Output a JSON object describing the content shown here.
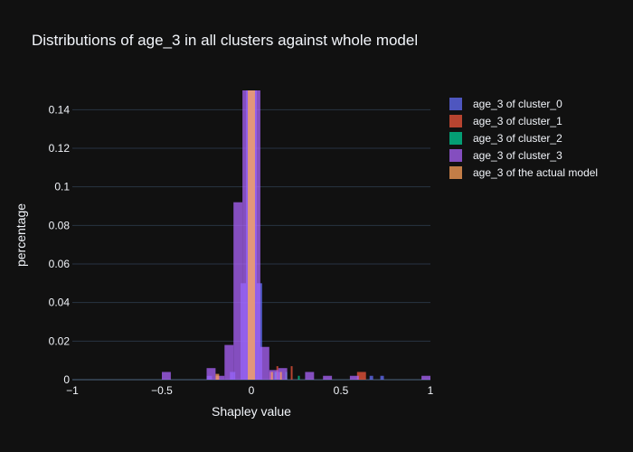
{
  "chart_data": {
    "type": "bar",
    "title": "Distributions of age_3 in all clusters against whole model",
    "xlabel": "Shapley value",
    "ylabel": "percentage",
    "xlim": [
      -1,
      1
    ],
    "ylim": [
      0,
      0.15
    ],
    "x_ticks": [
      -1,
      -0.5,
      0,
      0.5,
      1
    ],
    "x_tick_labels": [
      "−1",
      "−0.5",
      "0",
      "0.5",
      "1"
    ],
    "y_ticks": [
      0,
      0.02,
      0.04,
      0.06,
      0.08,
      0.1,
      0.12,
      0.14
    ],
    "y_tick_labels": [
      "0",
      "0.02",
      "0.04",
      "0.06",
      "0.08",
      "0.1",
      "0.12",
      "0.14"
    ],
    "grid": true,
    "legend_position": "right",
    "background": "#111111",
    "series": [
      {
        "name": "age_3 of cluster_0",
        "color": "#636efa",
        "bins": [
          {
            "x0": -0.25,
            "x1": -0.22,
            "y": 0.002
          },
          {
            "x0": -0.12,
            "x1": -0.09,
            "y": 0.004
          },
          {
            "x0": -0.06,
            "x1": -0.03,
            "y": 0.05
          },
          {
            "x0": -0.03,
            "x1": 0.0,
            "y": 0.15
          },
          {
            "x0": 0.0,
            "x1": 0.03,
            "y": 0.15
          },
          {
            "x0": 0.03,
            "x1": 0.06,
            "y": 0.05
          },
          {
            "x0": 0.13,
            "x1": 0.16,
            "y": 0.004
          },
          {
            "x0": 0.66,
            "x1": 0.68,
            "y": 0.002
          },
          {
            "x0": 0.72,
            "x1": 0.74,
            "y": 0.002
          }
        ]
      },
      {
        "name": "age_3 of cluster_1",
        "color": "#ef553b",
        "bins": [
          {
            "x0": -0.02,
            "x1": 0.0,
            "y": 0.15
          },
          {
            "x0": 0.0,
            "x1": 0.02,
            "y": 0.15
          },
          {
            "x0": 0.1,
            "x1": 0.11,
            "y": 0.004
          },
          {
            "x0": 0.14,
            "x1": 0.15,
            "y": 0.007
          },
          {
            "x0": 0.22,
            "x1": 0.23,
            "y": 0.007
          },
          {
            "x0": 0.59,
            "x1": 0.64,
            "y": 0.004
          }
        ]
      },
      {
        "name": "age_3 of cluster_2",
        "color": "#00cc96",
        "bins": [
          {
            "x0": -0.02,
            "x1": 0.02,
            "y": 0.15
          },
          {
            "x0": 0.13,
            "x1": 0.14,
            "y": 0.004
          },
          {
            "x0": 0.19,
            "x1": 0.2,
            "y": 0.004
          },
          {
            "x0": 0.26,
            "x1": 0.27,
            "y": 0.002
          }
        ]
      },
      {
        "name": "age_3 of cluster_3",
        "color": "#ab63fa",
        "bins": [
          {
            "x0": -0.5,
            "x1": -0.45,
            "y": 0.004
          },
          {
            "x0": -0.25,
            "x1": -0.2,
            "y": 0.006
          },
          {
            "x0": -0.2,
            "x1": -0.15,
            "y": 0.002
          },
          {
            "x0": -0.15,
            "x1": -0.1,
            "y": 0.018
          },
          {
            "x0": -0.1,
            "x1": -0.05,
            "y": 0.092
          },
          {
            "x0": -0.05,
            "x1": 0.0,
            "y": 0.15
          },
          {
            "x0": 0.0,
            "x1": 0.05,
            "y": 0.15
          },
          {
            "x0": 0.05,
            "x1": 0.1,
            "y": 0.017
          },
          {
            "x0": 0.1,
            "x1": 0.15,
            "y": 0.005
          },
          {
            "x0": 0.15,
            "x1": 0.2,
            "y": 0.006
          },
          {
            "x0": 0.3,
            "x1": 0.35,
            "y": 0.004
          },
          {
            "x0": 0.4,
            "x1": 0.45,
            "y": 0.002
          },
          {
            "x0": 0.55,
            "x1": 0.6,
            "y": 0.002
          },
          {
            "x0": 0.95,
            "x1": 1.0,
            "y": 0.002
          }
        ]
      },
      {
        "name": "age_3 of the actual model",
        "color": "#ffa15a",
        "bins": [
          {
            "x0": -0.2,
            "x1": -0.18,
            "y": 0.003
          },
          {
            "x0": -0.02,
            "x1": 0.0,
            "y": 0.15
          },
          {
            "x0": 0.0,
            "x1": 0.02,
            "y": 0.15
          },
          {
            "x0": 0.11,
            "x1": 0.12,
            "y": 0.004
          },
          {
            "x0": 0.16,
            "x1": 0.17,
            "y": 0.004
          }
        ]
      }
    ]
  }
}
